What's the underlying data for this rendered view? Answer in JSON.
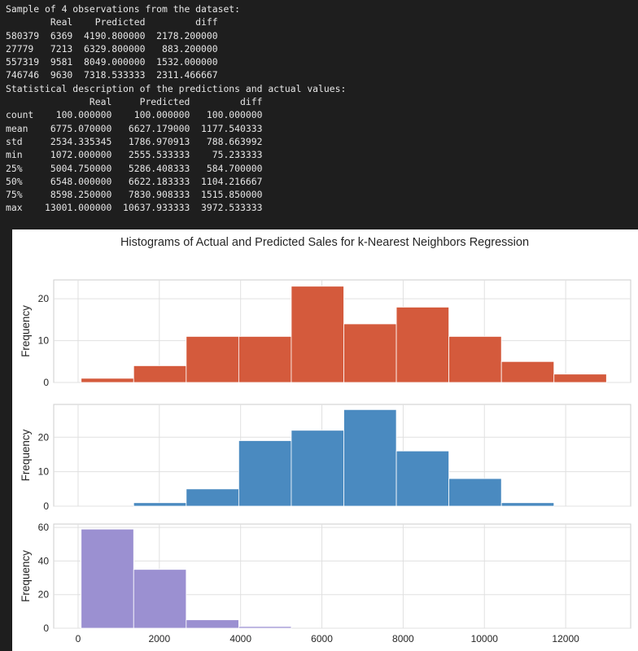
{
  "console": {
    "lines": [
      "Sample of 4 observations from the dataset:",
      "        Real    Predicted         diff",
      "580379  6369  4190.800000  2178.200000",
      "27779   7213  6329.800000   883.200000",
      "557319  9581  8049.000000  1532.000000",
      "746746  9630  7318.533333  2311.466667",
      "Statistical description of the predictions and actual values:",
      "               Real     Predicted         diff",
      "count    100.000000    100.000000   100.000000",
      "mean    6775.070000   6627.179000  1177.540333",
      "std     2534.335345   1786.970913   788.663992",
      "min     1072.000000   2555.533333    75.233333",
      "25%     5004.750000   5286.408333   584.700000",
      "50%     6548.000000   6622.183333  1104.216667",
      "75%     8598.250000   7830.908333  1515.850000",
      "max    13001.000000  10637.933333  3972.533333"
    ]
  },
  "chart_data": {
    "type": "histogram",
    "title": "Histograms of Actual and Predicted Sales for k-Nearest Neighbors Regression",
    "xlim": [
      -600,
      13600
    ],
    "xticks": [
      0,
      2000,
      4000,
      6000,
      8000,
      10000,
      12000
    ],
    "grid": true,
    "bin_edges": [
      75,
      1368,
      2661,
      3954,
      5247,
      6540,
      7833,
      9126,
      10419,
      11712,
      13005
    ],
    "panels": [
      {
        "name": "actual",
        "ylabel": "Frequency",
        "color": "#d45a3c",
        "ylim": [
          0,
          24.5
        ],
        "yticks": [
          0,
          10,
          20
        ],
        "counts": [
          1,
          4,
          11,
          11,
          23,
          14,
          18,
          11,
          5,
          2
        ]
      },
      {
        "name": "predicted",
        "ylabel": "Frequency",
        "color": "#4a8ac0",
        "ylim": [
          0,
          29.5
        ],
        "yticks": [
          0,
          10,
          20
        ],
        "counts": [
          0,
          1,
          5,
          19,
          22,
          28,
          16,
          8,
          1,
          0
        ]
      },
      {
        "name": "diff",
        "ylabel": "Frequency",
        "color": "#9b90d1",
        "ylim": [
          0,
          62
        ],
        "yticks": [
          0,
          20,
          40,
          60
        ],
        "counts": [
          59,
          35,
          5,
          1,
          0,
          0,
          0,
          0,
          0,
          0
        ]
      }
    ]
  }
}
